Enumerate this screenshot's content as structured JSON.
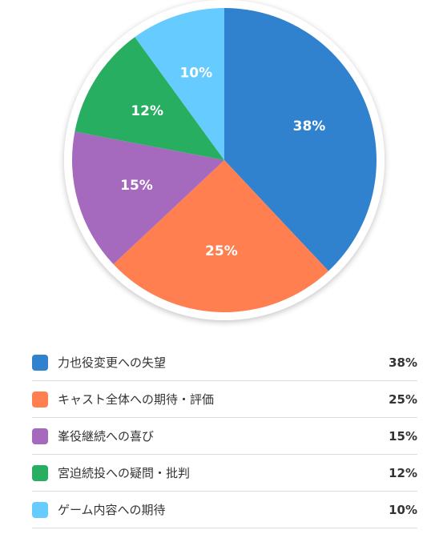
{
  "chart_data": {
    "type": "pie",
    "slices": [
      {
        "label": "力也役変更への失望",
        "value": 38,
        "display": "38%",
        "color": "#3182ce"
      },
      {
        "label": "キャスト全体への期待・評価",
        "value": 25,
        "display": "25%",
        "color": "#ff7f50"
      },
      {
        "label": "峯役継続への喜び",
        "value": 15,
        "display": "15%",
        "color": "#a569bd"
      },
      {
        "label": "宮迫続投への疑問・批判",
        "value": 12,
        "display": "12%",
        "color": "#27ae60"
      },
      {
        "label": "ゲーム内容への期待",
        "value": 10,
        "display": "10%",
        "color": "#66ccff"
      }
    ]
  }
}
